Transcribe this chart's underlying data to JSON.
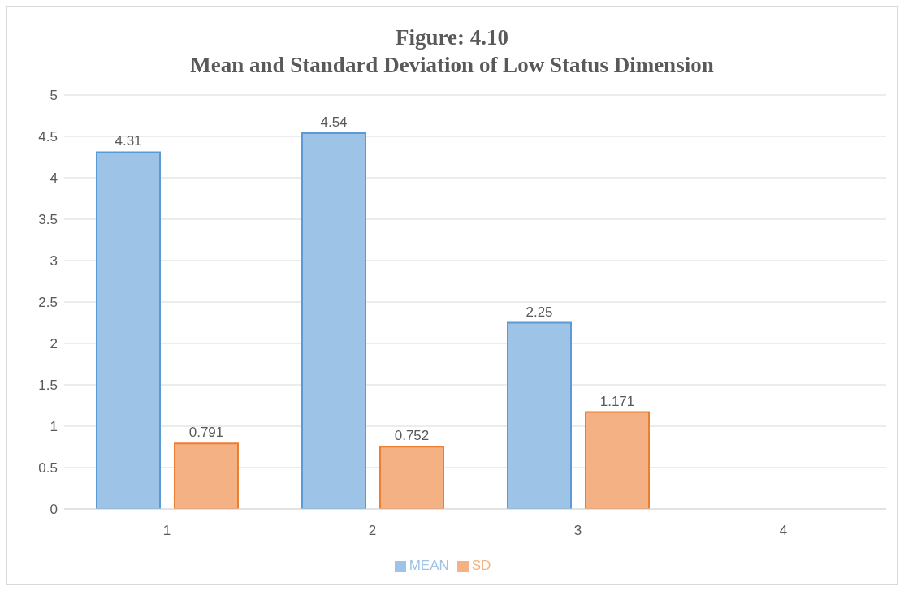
{
  "chart_data": {
    "type": "bar",
    "title": "Figure: 4.10",
    "subtitle": "Mean and Standard Deviation of Low Status Dimension",
    "categories": [
      "1",
      "2",
      "3",
      "4"
    ],
    "series": [
      {
        "name": "MEAN",
        "color": "#9dc3e6",
        "values": [
          4.31,
          4.54,
          2.25,
          null
        ]
      },
      {
        "name": "SD",
        "color": "#f4b183",
        "values": [
          0.791,
          0.752,
          1.171,
          null
        ]
      }
    ],
    "ylim": [
      0,
      5
    ],
    "yticks": [
      0,
      0.5,
      1,
      1.5,
      2,
      2.5,
      3,
      3.5,
      4,
      4.5,
      5
    ],
    "grid": "y",
    "legend": "bottom",
    "data_labels": true
  }
}
